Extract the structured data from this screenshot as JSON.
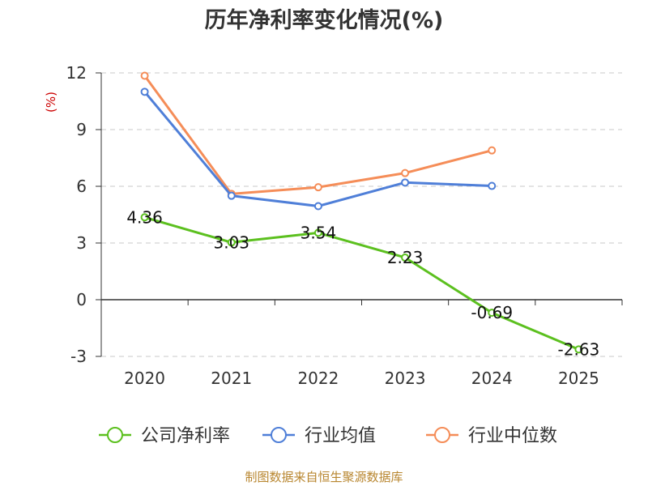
{
  "chart_data": {
    "type": "line",
    "title": "历年净利率变化情况(%)",
    "ylabel": "(%)",
    "categories": [
      "2020",
      "2021",
      "2022",
      "2023",
      "2024",
      "2025"
    ],
    "ylim": [
      -3,
      12
    ],
    "yticks": [
      -3,
      0,
      3,
      6,
      9,
      12
    ],
    "grid": true,
    "legend_position": "bottom",
    "series": [
      {
        "name": "公司净利率",
        "color": "#5cc01f",
        "values": [
          4.36,
          3.03,
          3.54,
          2.23,
          -0.69,
          -2.63
        ],
        "labels": [
          "4.36",
          "3.03",
          "3.54",
          "2.23",
          "-0.69",
          "-2.63"
        ]
      },
      {
        "name": "行业均值",
        "color": "#4f7fd8",
        "values": [
          11.0,
          5.5,
          4.95,
          6.2,
          6.02,
          null
        ]
      },
      {
        "name": "行业中位数",
        "color": "#f58d58",
        "values": [
          11.85,
          5.6,
          5.95,
          6.7,
          7.9,
          null
        ]
      }
    ]
  },
  "footer": {
    "source": "制图数据来自恒生聚源数据库"
  }
}
